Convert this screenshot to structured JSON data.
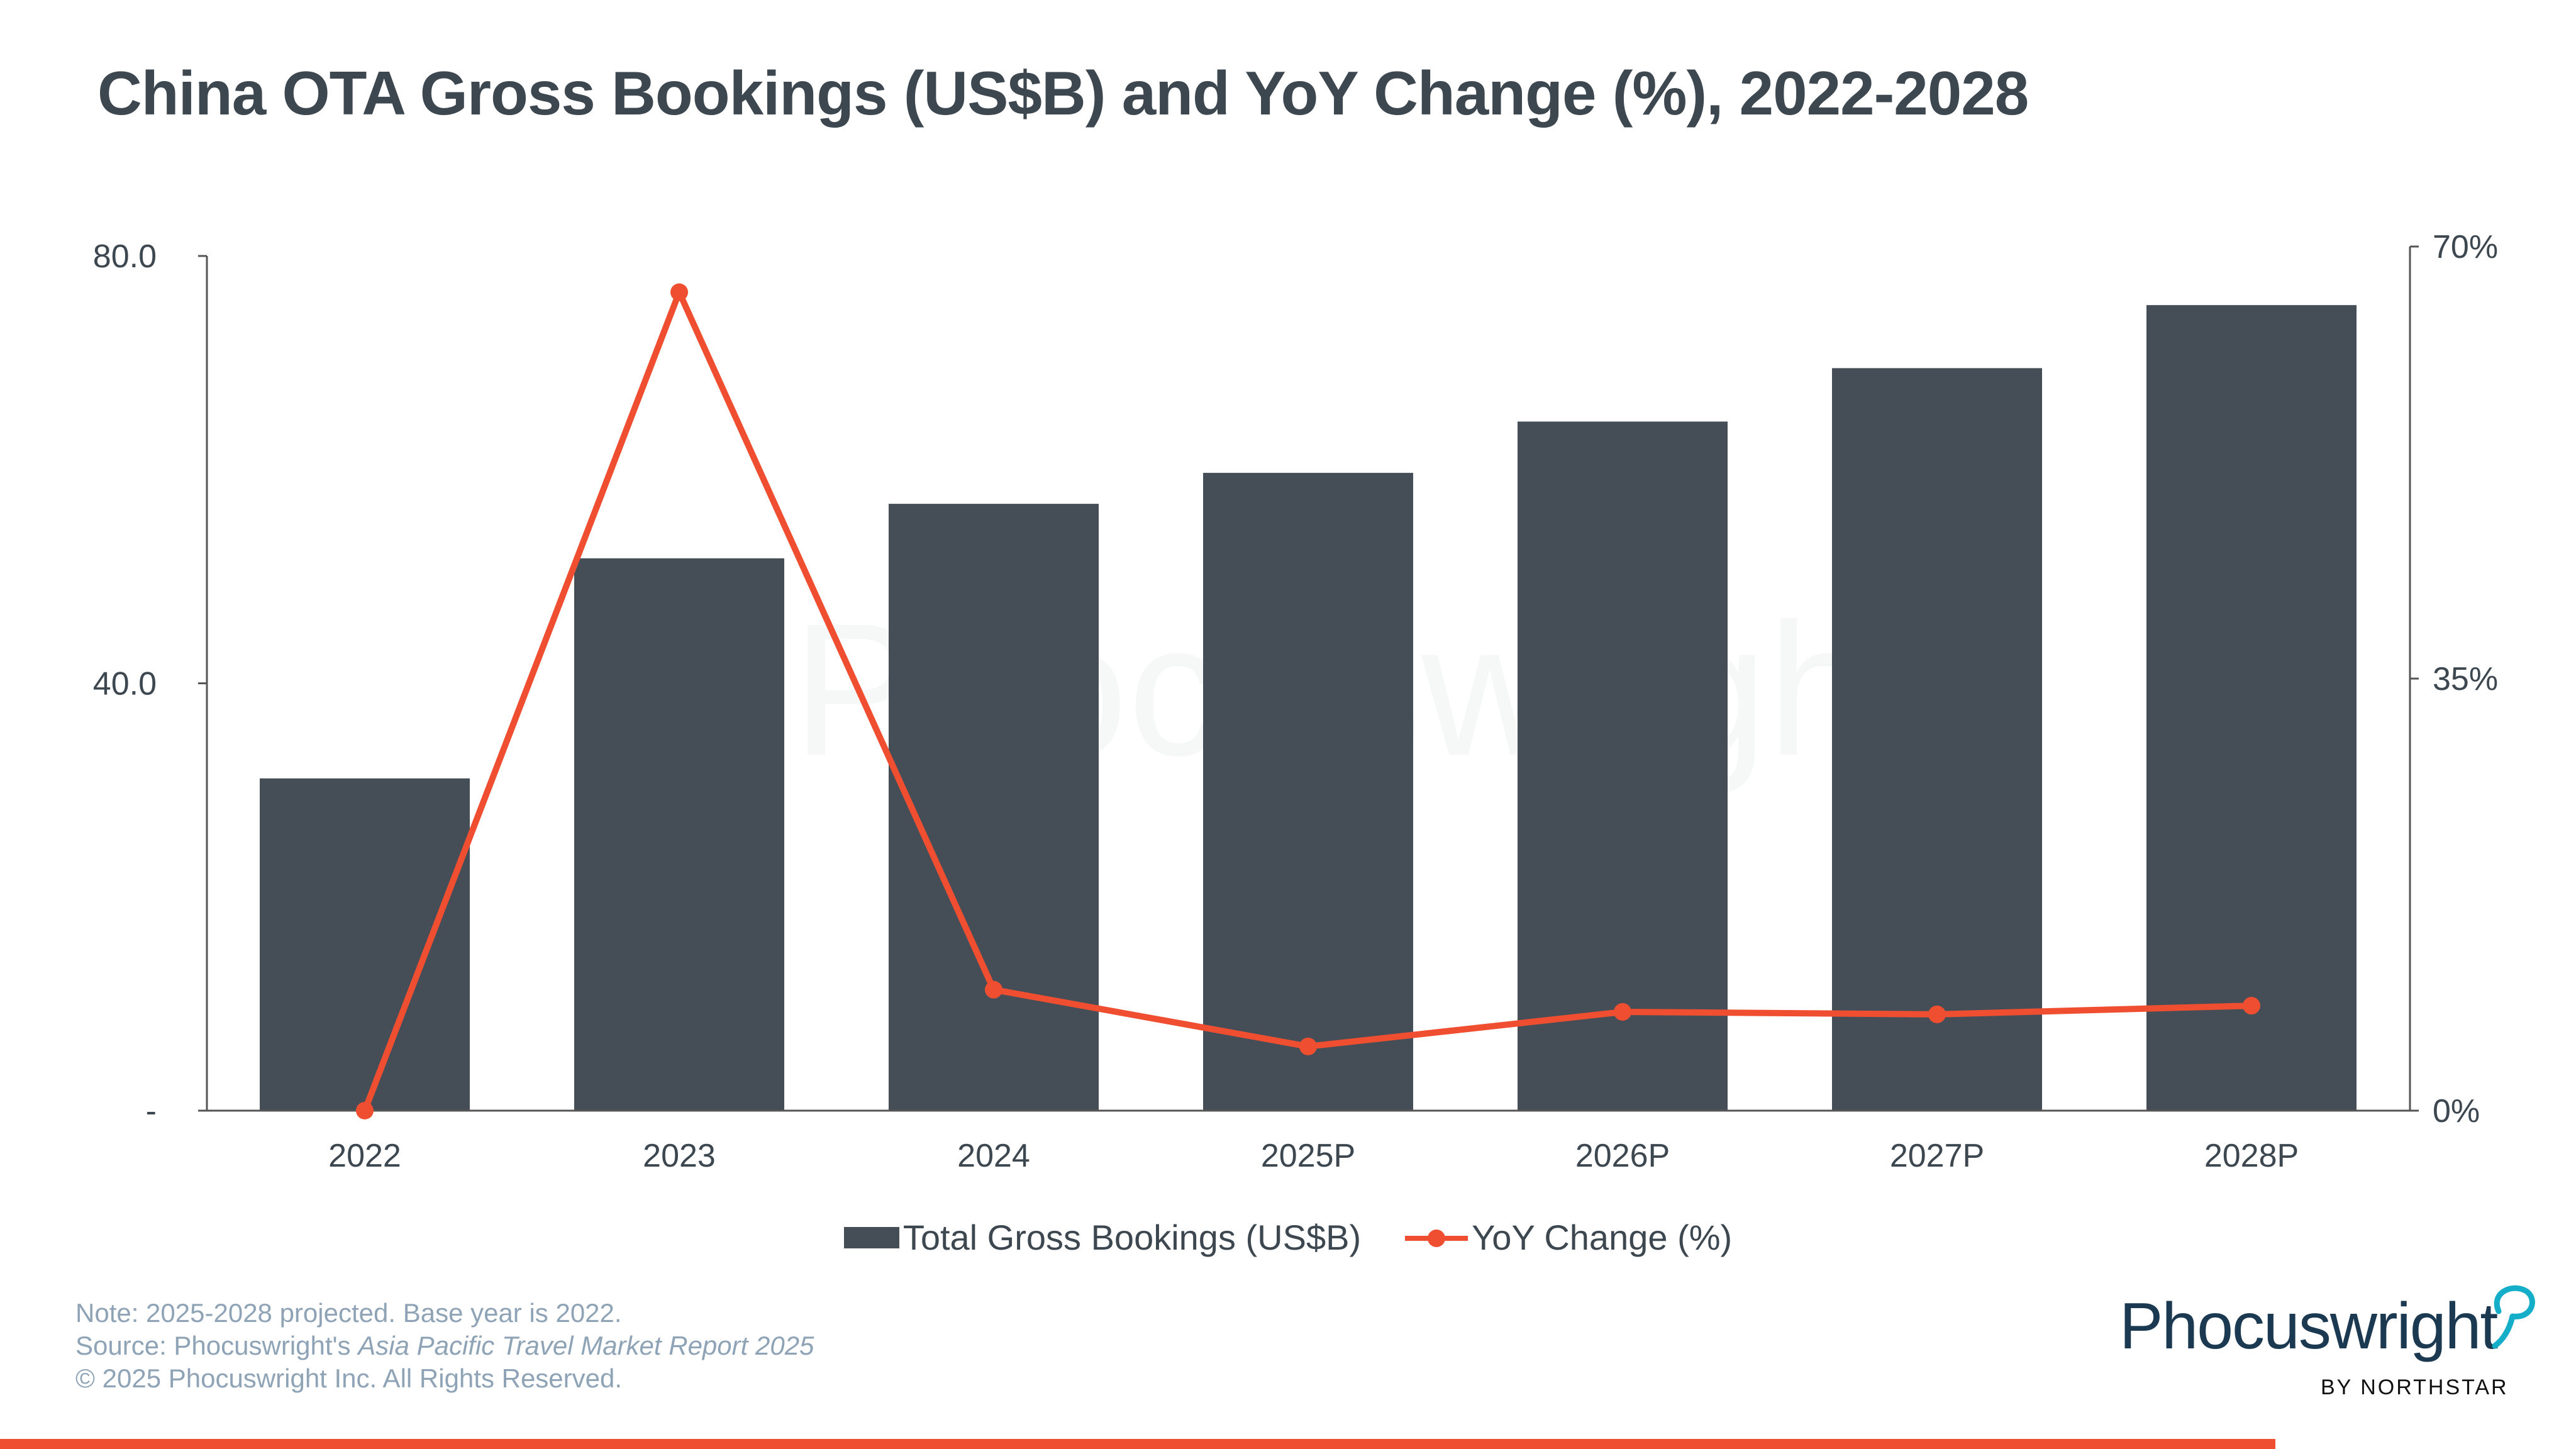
{
  "title": "China OTA Gross Bookings (US$B) and YoY Change (%), 2022-2028",
  "chart_data": {
    "type": "bar+line",
    "title": "China OTA Gross Bookings (US$B) and YoY Change (%), 2022-2028",
    "categories": [
      "2022",
      "2023",
      "2024",
      "2025P",
      "2026P",
      "2027P",
      "2028P"
    ],
    "series": [
      {
        "name": "Total Gross Bookings (US$B)",
        "type": "bar",
        "axis": "left",
        "color": "#454e57",
        "values": [
          31.1,
          51.7,
          56.8,
          59.7,
          64.5,
          69.5,
          75.4
        ]
      },
      {
        "name": "YoY Change (%)",
        "type": "line",
        "axis": "right",
        "color": "#f04e30",
        "values": [
          0,
          66.3,
          9.8,
          5.2,
          8.0,
          7.8,
          8.5
        ]
      }
    ],
    "left_axis": {
      "range": [
        0,
        80
      ],
      "ticks": [
        0,
        40,
        80
      ],
      "tick_labels": [
        "-",
        "40.0",
        "80.0"
      ]
    },
    "right_axis": {
      "range": [
        0,
        70
      ],
      "ticks": [
        0,
        35,
        70
      ],
      "tick_labels": [
        "0%",
        "35%",
        "70%"
      ]
    },
    "grid": false,
    "legend_position": "bottom"
  },
  "legend": {
    "bar_label": "Total Gross Bookings (US$B)",
    "line_label": "YoY Change (%)"
  },
  "footer": {
    "note": "Note: 2025-2028 projected. Base year is 2022.",
    "source_prefix": "Source: Phocuswright's ",
    "source_title": "Asia Pacific Travel Market Report 2025",
    "copyright": "© 2025 Phocuswright Inc. All Rights Reserved."
  },
  "logo": {
    "name": "Phocuswright",
    "sub": "BY NORTHSTAR"
  },
  "colors": {
    "bar": "#454e57",
    "line": "#f04e30",
    "accent": "#f04e30",
    "brand": "#1b3a52",
    "bubble": "#14aec9"
  }
}
